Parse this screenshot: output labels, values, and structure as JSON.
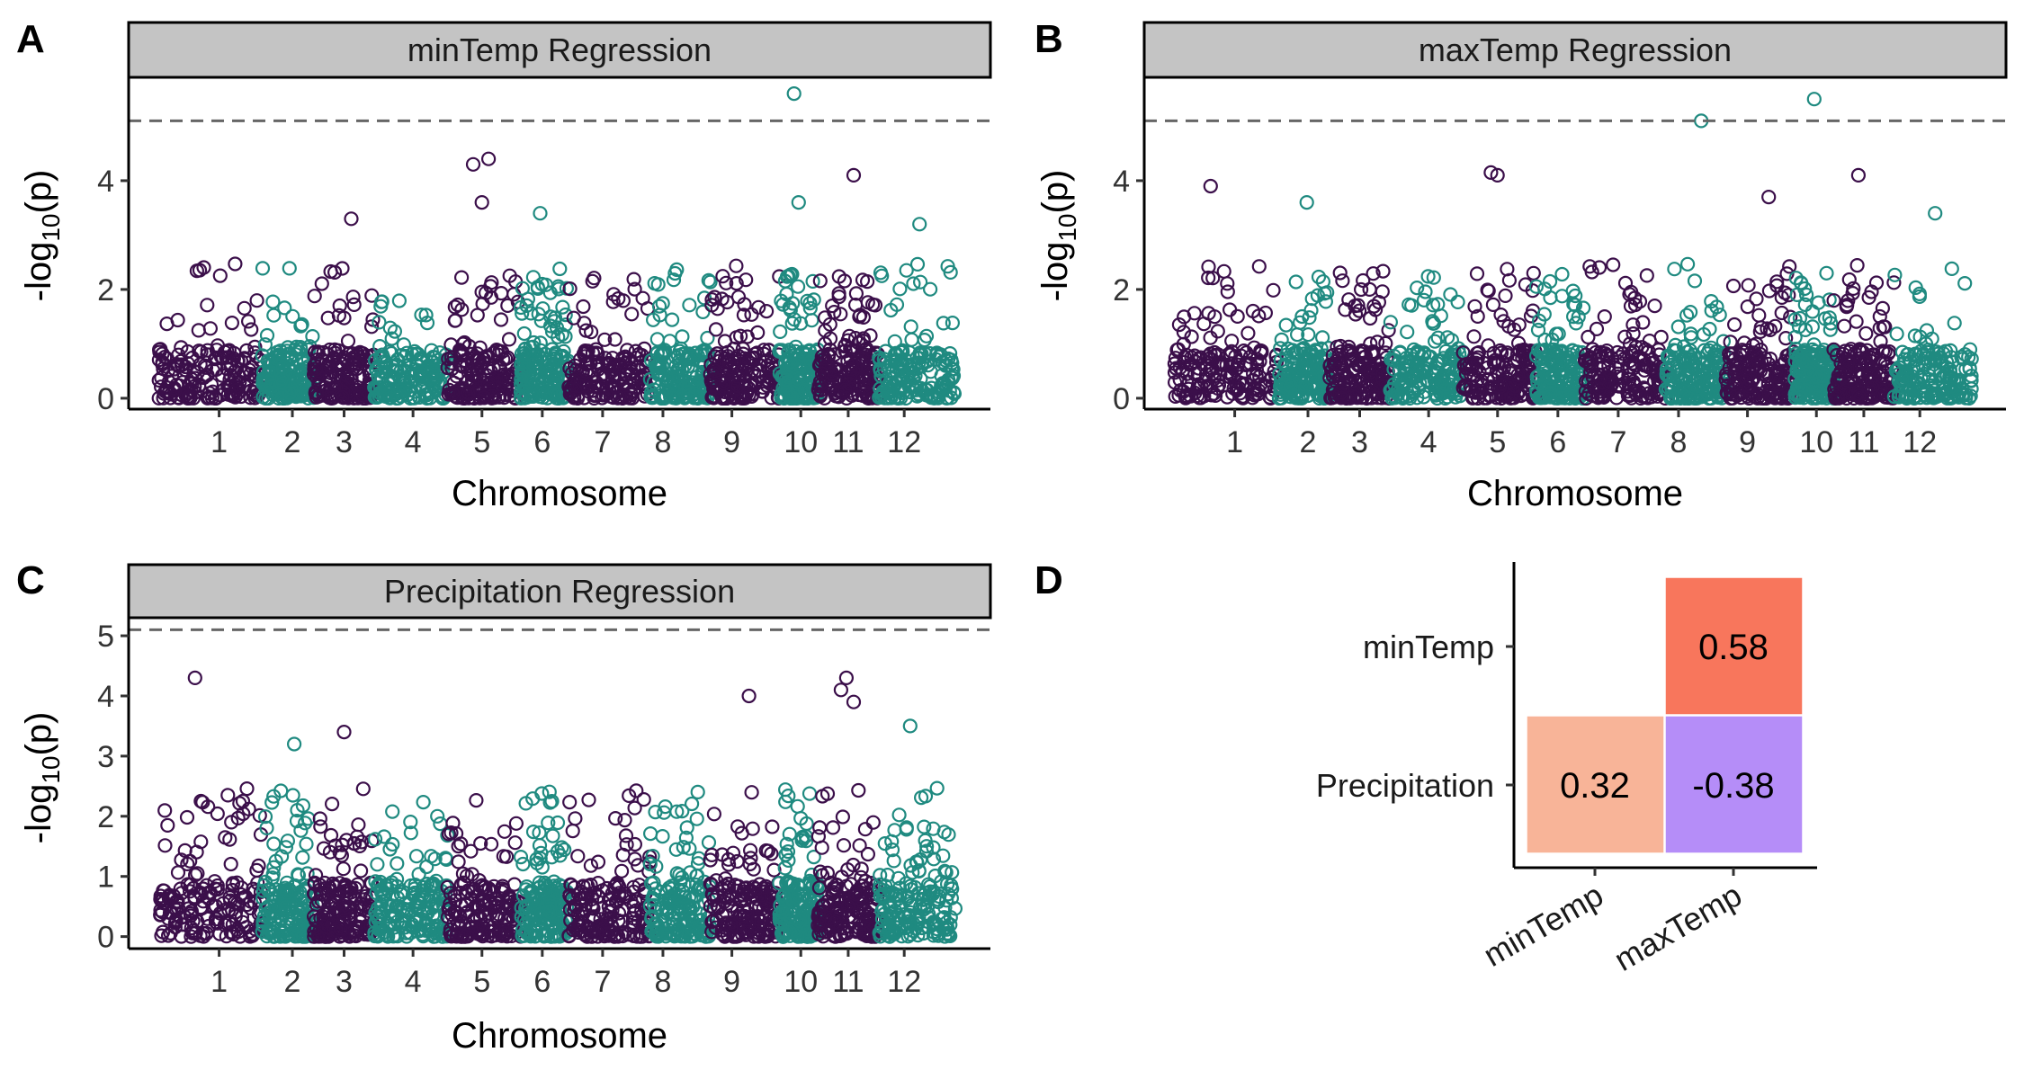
{
  "panels": {
    "A": {
      "letter": "A",
      "strip_title": "minTemp Regression",
      "xlabel": "Chromosome",
      "ylabel_main": "-log",
      "ylabel_sub": "10",
      "ylabel_tail": "(p)"
    },
    "B": {
      "letter": "B",
      "strip_title": "maxTemp Regression",
      "xlabel": "Chromosome",
      "ylabel_main": "-log",
      "ylabel_sub": "10",
      "ylabel_tail": "(p)"
    },
    "C": {
      "letter": "C",
      "strip_title": "Precipitation Regression",
      "xlabel": "Chromosome",
      "ylabel_main": "-log",
      "ylabel_sub": "10",
      "ylabel_tail": "(p)"
    },
    "D": {
      "letter": "D"
    }
  },
  "colors": {
    "odd_chrom": "#3b0f4a",
    "even_chrom": "#1f8a80",
    "threshold": "#666666",
    "strip_fill": "#c4c4c4"
  },
  "chart_data": [
    {
      "id": "A",
      "type": "scatter",
      "subtype": "manhattan",
      "title": "minTemp Regression",
      "xlabel": "Chromosome",
      "ylabel": "-log10(p)",
      "ylim": [
        -0.2,
        5.9
      ],
      "yticks": [
        0,
        2,
        4
      ],
      "threshold": 5.1,
      "chromosomes": [
        "1",
        "2",
        "3",
        "4",
        "5",
        "6",
        "7",
        "8",
        "9",
        "10",
        "11",
        "12"
      ],
      "chrom_peak": [
        2.8,
        3.0,
        3.3,
        2.0,
        4.4,
        3.4,
        2.4,
        2.8,
        3.0,
        5.6,
        4.1,
        3.2
      ],
      "top_hits": [
        {
          "chrom": "5",
          "y": 4.3
        },
        {
          "chrom": "5",
          "y": 4.4
        },
        {
          "chrom": "5",
          "y": 3.6
        },
        {
          "chrom": "10",
          "y": 5.6
        },
        {
          "chrom": "11",
          "y": 4.1
        },
        {
          "chrom": "10",
          "y": 3.6
        },
        {
          "chrom": "6",
          "y": 3.4
        },
        {
          "chrom": "3",
          "y": 3.3
        },
        {
          "chrom": "12",
          "y": 3.2
        }
      ]
    },
    {
      "id": "B",
      "type": "scatter",
      "subtype": "manhattan",
      "title": "maxTemp Regression",
      "xlabel": "Chromosome",
      "ylabel": "-log10(p)",
      "ylim": [
        -0.2,
        5.9
      ],
      "yticks": [
        0,
        2,
        4
      ],
      "threshold": 5.1,
      "chromosomes": [
        "1",
        "2",
        "3",
        "4",
        "5",
        "6",
        "7",
        "8",
        "9",
        "10",
        "11",
        "12"
      ],
      "chrom_peak": [
        3.9,
        3.6,
        2.6,
        2.4,
        4.1,
        2.4,
        3.2,
        5.1,
        3.7,
        5.5,
        4.1,
        3.4
      ],
      "top_hits": [
        {
          "chrom": "1",
          "y": 3.9
        },
        {
          "chrom": "2",
          "y": 3.6
        },
        {
          "chrom": "5",
          "y": 4.1
        },
        {
          "chrom": "5",
          "y": 4.15
        },
        {
          "chrom": "8",
          "y": 5.1
        },
        {
          "chrom": "10",
          "y": 5.5
        },
        {
          "chrom": "11",
          "y": 4.1
        },
        {
          "chrom": "9",
          "y": 3.7
        },
        {
          "chrom": "12",
          "y": 3.4
        }
      ]
    },
    {
      "id": "C",
      "type": "scatter",
      "subtype": "manhattan",
      "title": "Precipitation Regression",
      "xlabel": "Chromosome",
      "ylabel": "-log10(p)",
      "ylim": [
        -0.2,
        5.3
      ],
      "yticks": [
        0,
        1,
        2,
        3,
        4,
        5
      ],
      "threshold": 5.1,
      "chromosomes": [
        "1",
        "2",
        "3",
        "4",
        "5",
        "6",
        "7",
        "8",
        "9",
        "10",
        "11",
        "12"
      ],
      "chrom_peak": [
        4.3,
        3.2,
        3.4,
        2.4,
        2.9,
        2.6,
        2.8,
        2.6,
        4.0,
        2.8,
        4.3,
        3.5
      ],
      "top_hits": [
        {
          "chrom": "1",
          "y": 4.3
        },
        {
          "chrom": "9",
          "y": 4.0
        },
        {
          "chrom": "11",
          "y": 4.3
        },
        {
          "chrom": "11",
          "y": 4.1
        },
        {
          "chrom": "11",
          "y": 3.9
        },
        {
          "chrom": "3",
          "y": 3.4
        },
        {
          "chrom": "12",
          "y": 3.5
        },
        {
          "chrom": "2",
          "y": 3.2
        }
      ]
    },
    {
      "id": "D",
      "type": "heatmap",
      "x_categories": [
        "minTemp",
        "maxTemp"
      ],
      "y_categories": [
        "minTemp",
        "Precipitation"
      ],
      "cells": [
        {
          "x": "maxTemp",
          "y": "minTemp",
          "value": 0.58,
          "label": "0.58",
          "color": "#f8765c"
        },
        {
          "x": "minTemp",
          "y": "Precipitation",
          "value": 0.32,
          "label": "0.32",
          "color": "#f8b498"
        },
        {
          "x": "maxTemp",
          "y": "Precipitation",
          "value": -0.38,
          "label": "-0.38",
          "color": "#b58df8"
        }
      ]
    }
  ]
}
